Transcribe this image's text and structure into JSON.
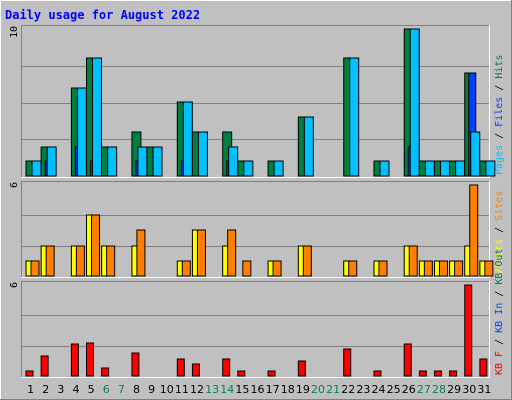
{
  "chart_data": {
    "type": "bar",
    "title": "Daily usage for August 2022",
    "categories": [
      "1",
      "2",
      "3",
      "4",
      "5",
      "6",
      "7",
      "8",
      "9",
      "10",
      "11",
      "12",
      "13",
      "14",
      "15",
      "16",
      "17",
      "18",
      "19",
      "20",
      "21",
      "22",
      "23",
      "24",
      "25",
      "26",
      "27",
      "28",
      "29",
      "30",
      "31"
    ],
    "weekend_days": [
      "6",
      "7",
      "13",
      "14",
      "20",
      "21",
      "27",
      "28"
    ],
    "panels": [
      {
        "name": "hits-files-pages",
        "ymax_label": "10",
        "ymax": 10,
        "legend": [
          "Pages",
          "Files",
          "Hits"
        ],
        "series": [
          {
            "name": "Hits",
            "values": [
              1,
              2,
              0,
              6,
              8,
              2,
              0,
              3,
              2,
              0,
              5,
              3,
              0,
              3,
              1,
              0,
              1,
              0,
              4,
              0,
              0,
              8,
              0,
              1,
              0,
              10,
              1,
              1,
              1,
              7,
              1
            ]
          },
          {
            "name": "Files",
            "values": [
              0,
              1,
              0,
              2,
              1,
              0,
              0,
              1,
              0,
              0,
              1,
              0,
              0,
              1,
              0,
              0,
              0,
              0,
              0,
              0,
              0,
              0,
              0,
              0,
              0,
              2,
              0,
              0,
              0,
              7,
              0
            ]
          },
          {
            "name": "Pages",
            "values": [
              1,
              2,
              0,
              6,
              8,
              2,
              0,
              2,
              2,
              0,
              5,
              3,
              0,
              2,
              1,
              0,
              1,
              0,
              4,
              0,
              0,
              8,
              0,
              1,
              0,
              10,
              1,
              1,
              1,
              3,
              1
            ]
          }
        ]
      },
      {
        "name": "visits-sites",
        "ymax_label": "6",
        "ymax": 6,
        "legend": [
          "Visits",
          "Sites"
        ],
        "series": [
          {
            "name": "Visits",
            "values": [
              1,
              2,
              0,
              2,
              4,
              2,
              0,
              2,
              0,
              0,
              1,
              3,
              0,
              2,
              0,
              0,
              1,
              0,
              2,
              0,
              0,
              1,
              0,
              1,
              0,
              2,
              1,
              1,
              1,
              2,
              1
            ]
          },
          {
            "name": "Sites",
            "values": [
              1,
              2,
              0,
              2,
              4,
              2,
              0,
              3,
              0,
              0,
              1,
              3,
              0,
              3,
              1,
              0,
              1,
              0,
              2,
              0,
              0,
              1,
              0,
              1,
              0,
              2,
              1,
              1,
              1,
              6,
              1
            ]
          }
        ]
      },
      {
        "name": "kbytes",
        "ymax_label": "6",
        "ymax": 6,
        "legend": [
          "KB F",
          "KB In",
          "KB Out"
        ],
        "series": [
          {
            "name": "KB F",
            "values": [
              0.3,
              1.3,
              0,
              2.1,
              2.2,
              0.5,
              0,
              1.5,
              0,
              0,
              1.1,
              0.8,
              0,
              1.1,
              0.3,
              0,
              0.3,
              0,
              1.0,
              0,
              0,
              1.8,
              0,
              0.3,
              0,
              2.1,
              0.3,
              0.3,
              0.3,
              6.0,
              1.1
            ]
          }
        ]
      }
    ],
    "colors": {
      "background": "#c0c0c0",
      "page_bg": "#ffffff",
      "frame_light": "#ffffff",
      "frame_dark": "#808080",
      "gridline": "#808080",
      "title": "#0000ff",
      "hits": "#008040",
      "files": "#0040ff",
      "pages": "#00c0ff",
      "visits": "#ffff00",
      "sites": "#ff8000",
      "kbytes": "#ff0000",
      "day_normal": "#000000",
      "day_weekend": "#00805c"
    },
    "grid": true
  }
}
